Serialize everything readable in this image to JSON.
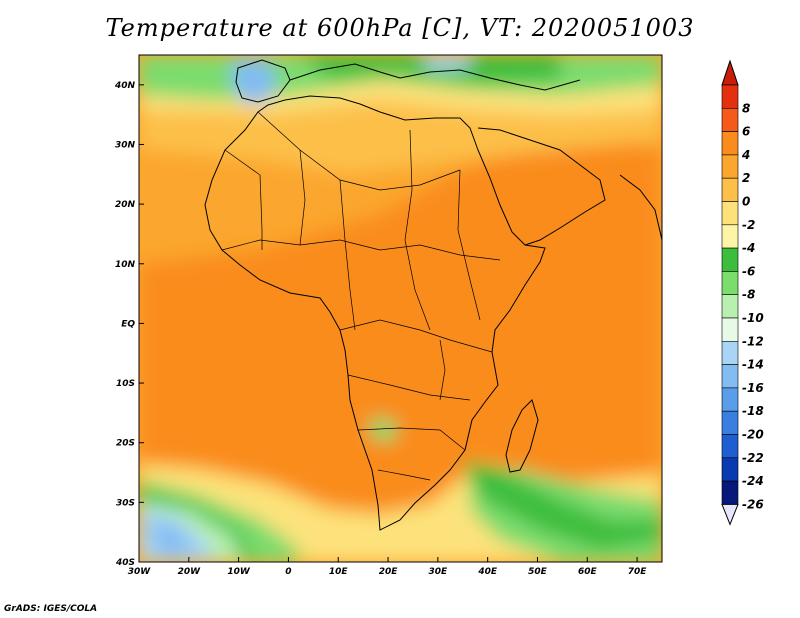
{
  "title": "Temperature at 600hPa [C], VT: 2020051003",
  "credit": "GrADS: IGES/COLA",
  "map": {
    "lon_range": [
      -30,
      75
    ],
    "lat_range": [
      -40,
      45
    ],
    "lon_ticks": [
      {
        "value": -30,
        "label": "30W"
      },
      {
        "value": -20,
        "label": "20W"
      },
      {
        "value": -10,
        "label": "10W"
      },
      {
        "value": 0,
        "label": "0"
      },
      {
        "value": 10,
        "label": "10E"
      },
      {
        "value": 20,
        "label": "20E"
      },
      {
        "value": 30,
        "label": "30E"
      },
      {
        "value": 40,
        "label": "40E"
      },
      {
        "value": 50,
        "label": "50E"
      },
      {
        "value": 60,
        "label": "60E"
      },
      {
        "value": 70,
        "label": "70E"
      }
    ],
    "lat_ticks": [
      {
        "value": 40,
        "label": "40N"
      },
      {
        "value": 30,
        "label": "30N"
      },
      {
        "value": 20,
        "label": "20N"
      },
      {
        "value": 10,
        "label": "10N"
      },
      {
        "value": 0,
        "label": "EQ"
      },
      {
        "value": -10,
        "label": "10S"
      },
      {
        "value": -20,
        "label": "20S"
      },
      {
        "value": -30,
        "label": "30S"
      },
      {
        "value": -40,
        "label": "40S"
      }
    ]
  },
  "colorbar": {
    "levels": [
      {
        "label": "8",
        "color": "#e53010"
      },
      {
        "label": "6",
        "color": "#f55a1a"
      },
      {
        "label": "4",
        "color": "#fa8c1e"
      },
      {
        "label": "2",
        "color": "#fba62e"
      },
      {
        "label": "0",
        "color": "#fcc04a"
      },
      {
        "label": "-2",
        "color": "#fde27c"
      },
      {
        "label": "-4",
        "color": "#fdf5a6"
      },
      {
        "label": "-6",
        "color": "#3cbe3c"
      },
      {
        "label": "-8",
        "color": "#7cdc6e"
      },
      {
        "label": "-10",
        "color": "#b8f0b0"
      },
      {
        "label": "-12",
        "color": "#e6fae6"
      },
      {
        "label": "-14",
        "color": "#a8d4f6"
      },
      {
        "label": "-16",
        "color": "#82bcf2"
      },
      {
        "label": "-18",
        "color": "#5a9eea"
      },
      {
        "label": "-20",
        "color": "#3a7ee0"
      },
      {
        "label": "-22",
        "color": "#1e5ed0"
      },
      {
        "label": "-24",
        "color": "#0a3ab0"
      },
      {
        "label": "-26",
        "color": "#08187a"
      }
    ],
    "top_color": "#c81e0a",
    "bottom_color": "#e6e6ff"
  }
}
